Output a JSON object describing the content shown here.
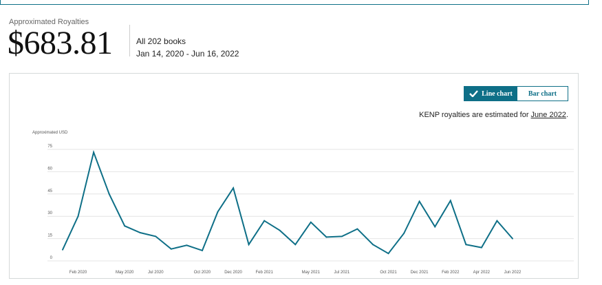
{
  "summary": {
    "label": "Approximated Royalties",
    "amount": "$683.81",
    "books": "All 202 books",
    "date_range": "Jan 14, 2020 - Jun 16, 2022"
  },
  "toggle": {
    "line_label": "Line chart",
    "bar_label": "Bar chart",
    "active": "line"
  },
  "note": {
    "prefix": "KENP royalties are estimated for ",
    "link": "June 2022",
    "suffix": "."
  },
  "colors": {
    "line": "#0e6f87",
    "grid": "#e4e4e4",
    "axis_text": "#555555"
  },
  "chart_data": {
    "type": "line",
    "ylabel": "Approximated USD",
    "ylim": [
      0,
      75
    ],
    "yticks": [
      0,
      15,
      30,
      45,
      60,
      75
    ],
    "grid": true,
    "x_tick_labels": [
      "Feb 2020",
      "May 2020",
      "Jul 2020",
      "Oct 2020",
      "Dec 2020",
      "Feb 2021",
      "May 2021",
      "Jul 2021",
      "Oct 2021",
      "Dec 2021",
      "Feb 2022",
      "Apr 2022",
      "Jun 2022"
    ],
    "x": [
      "Jan 2020",
      "Feb 2020",
      "Mar 2020",
      "Apr 2020",
      "May 2020",
      "Jun 2020",
      "Jul 2020",
      "Aug 2020",
      "Sep 2020",
      "Oct 2020",
      "Nov 2020",
      "Dec 2020",
      "Jan 2021",
      "Feb 2021",
      "Mar 2021",
      "Apr 2021",
      "May 2021",
      "Jun 2021",
      "Jul 2021",
      "Aug 2021",
      "Sep 2021",
      "Oct 2021",
      "Nov 2021",
      "Dec 2021",
      "Jan 2022",
      "Feb 2022",
      "Mar 2022",
      "Apr 2022",
      "May 2022",
      "Jun 2022"
    ],
    "series": [
      {
        "values": [
          7.5,
          30,
          73,
          45,
          23.5,
          19,
          16.5,
          8,
          10.5,
          7,
          33,
          49,
          11,
          27,
          20.5,
          11,
          26,
          16,
          16.5,
          21.5,
          11,
          5,
          18.5,
          40,
          23,
          40.5,
          11,
          9,
          27,
          15
        ]
      }
    ]
  }
}
